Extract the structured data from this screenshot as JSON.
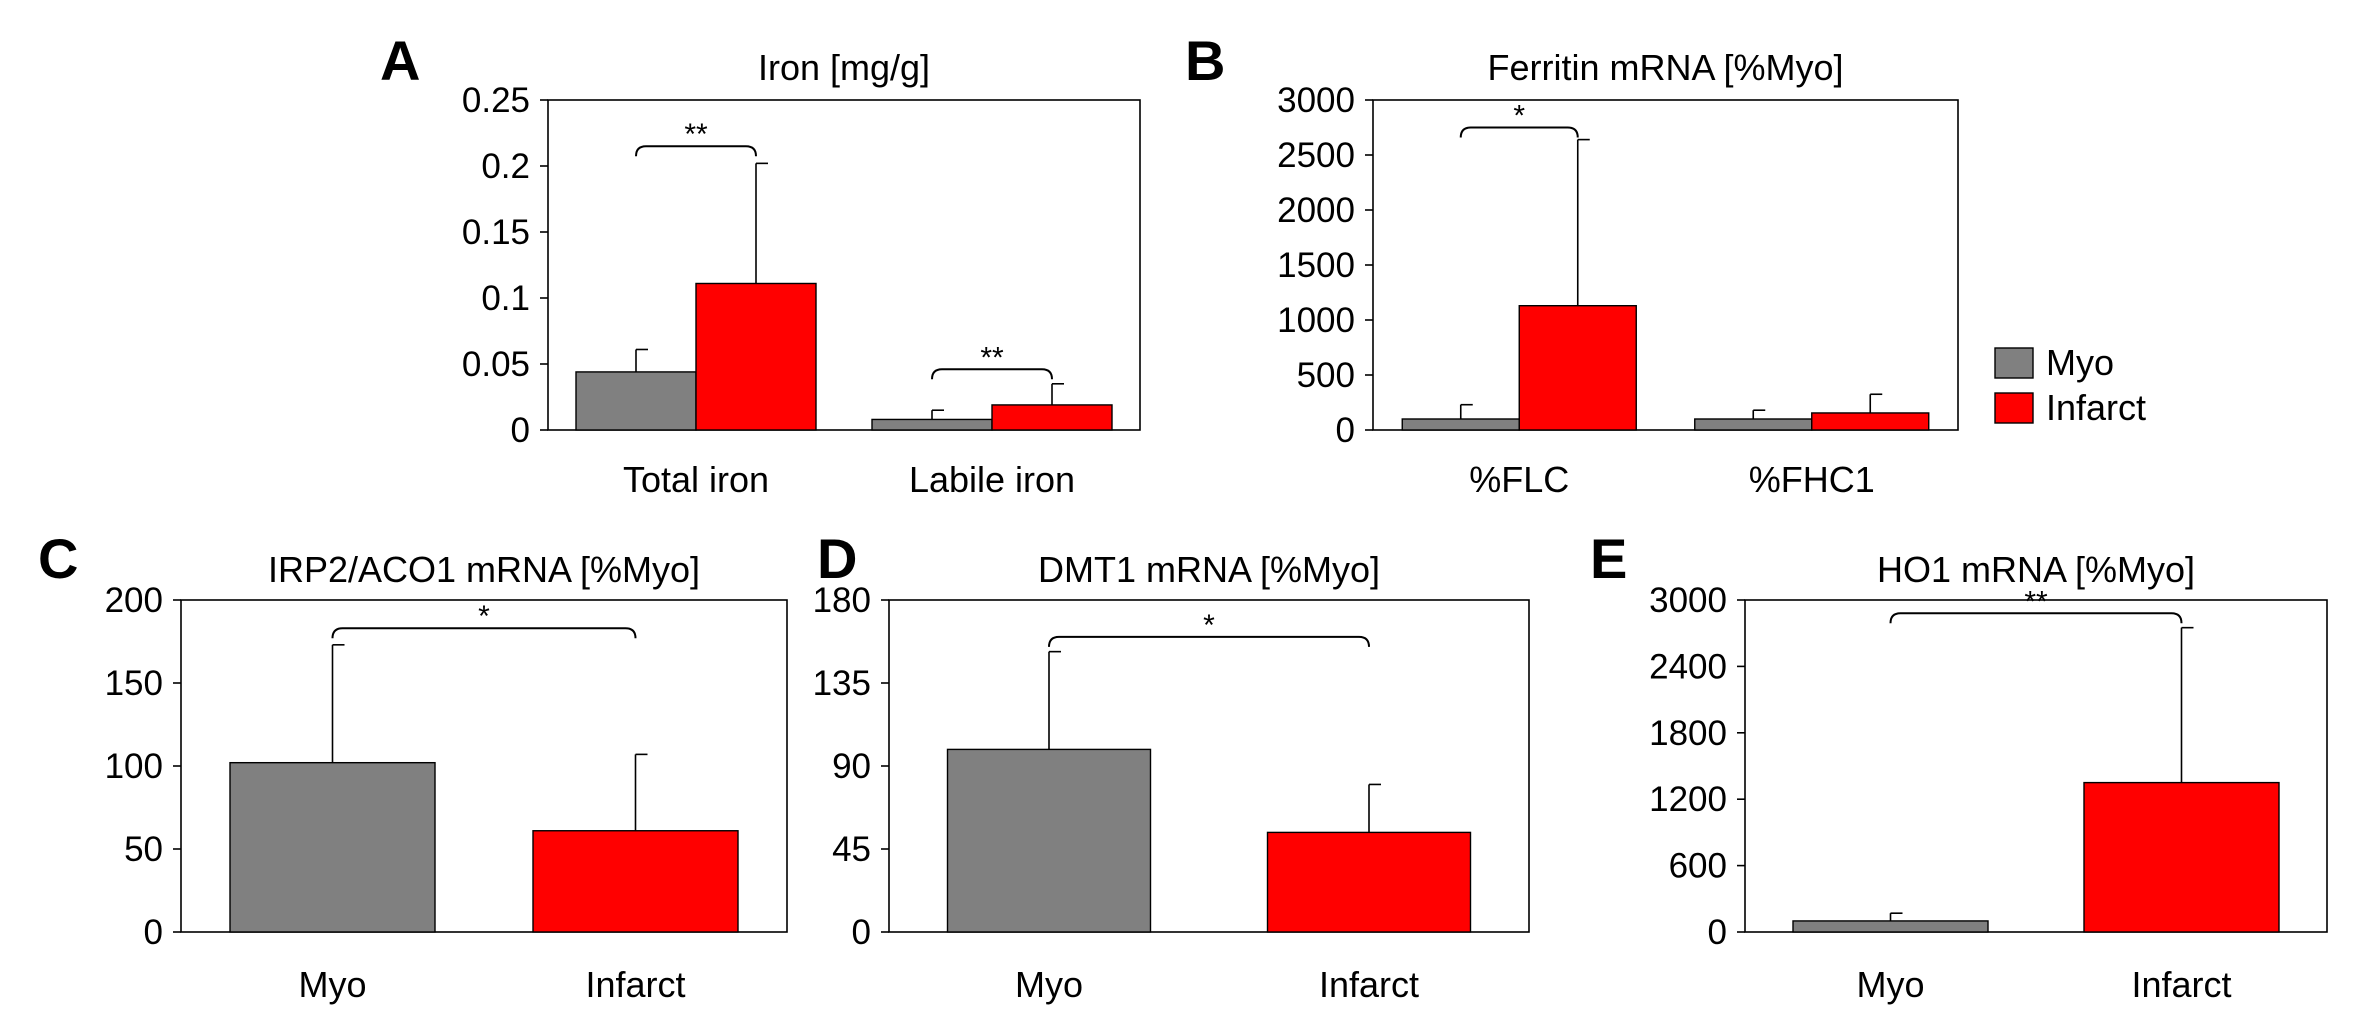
{
  "colors": {
    "myo": "#808080",
    "infarct": "#ff0000",
    "axis": "#000000"
  },
  "legend": [
    {
      "name": "Myo",
      "color": "#808080"
    },
    {
      "name": "Infarct",
      "color": "#ff0000"
    }
  ],
  "chart_data": [
    {
      "id": "A",
      "letter": "A",
      "type": "bar",
      "title": "Iron [mg/g]",
      "categories": [
        "Total iron",
        "Labile iron"
      ],
      "series": [
        {
          "name": "Myo",
          "values": [
            0.044,
            0.008
          ],
          "errors": [
            0.017,
            0.007
          ]
        },
        {
          "name": "Infarct",
          "values": [
            0.111,
            0.019
          ],
          "errors": [
            0.091,
            0.016
          ]
        }
      ],
      "ylim": [
        0,
        0.25
      ],
      "yticks": [
        0,
        0.05,
        0.1,
        0.15,
        0.2,
        0.25
      ],
      "ytick_labels": [
        "0",
        "0.05",
        "0.1",
        "0.15",
        "0.2",
        "0.25"
      ],
      "significance": [
        {
          "category": 0,
          "label": "**",
          "y": 0.215
        },
        {
          "category": 1,
          "label": "**",
          "y": 0.046
        }
      ]
    },
    {
      "id": "B",
      "letter": "B",
      "type": "bar",
      "title": "Ferritin mRNA [%Myo]",
      "categories": [
        "%FLC",
        "%FHC1"
      ],
      "series": [
        {
          "name": "Myo",
          "values": [
            100,
            100
          ],
          "errors": [
            130,
            80
          ]
        },
        {
          "name": "Infarct",
          "values": [
            1130,
            155
          ],
          "errors": [
            1510,
            170
          ]
        }
      ],
      "ylim": [
        0,
        3000
      ],
      "yticks": [
        0,
        500,
        1000,
        1500,
        2000,
        2500,
        3000
      ],
      "ytick_labels": [
        "0",
        "500",
        "1000",
        "1500",
        "2000",
        "2500",
        "3000"
      ],
      "significance": [
        {
          "category": 0,
          "label": "*",
          "y": 2750
        }
      ]
    },
    {
      "id": "C",
      "letter": "C",
      "type": "bar",
      "title": "IRP2/ACO1 mRNA [%Myo]",
      "categories": [
        "Myo",
        "Infarct"
      ],
      "values": [
        102,
        61
      ],
      "errors": [
        71,
        46
      ],
      "colors": [
        "#808080",
        "#ff0000"
      ],
      "ylim": [
        0,
        200
      ],
      "yticks": [
        0,
        50,
        100,
        150,
        200
      ],
      "ytick_labels": [
        "0",
        "50",
        "100",
        "150",
        "200"
      ],
      "significance": [
        {
          "label": "*",
          "y": 183
        }
      ]
    },
    {
      "id": "D",
      "letter": "D",
      "type": "bar",
      "title": "DMT1 mRNA [%Myo]",
      "categories": [
        "Myo",
        "Infarct"
      ],
      "values": [
        99,
        54
      ],
      "errors": [
        53,
        26
      ],
      "colors": [
        "#808080",
        "#ff0000"
      ],
      "ylim": [
        0,
        180
      ],
      "yticks": [
        0,
        45,
        90,
        135,
        180
      ],
      "ytick_labels": [
        "0",
        "45",
        "90",
        "135",
        "180"
      ],
      "significance": [
        {
          "label": "*",
          "y": 160
        }
      ]
    },
    {
      "id": "E",
      "letter": "E",
      "type": "bar",
      "title": "HO1 mRNA [%Myo]",
      "categories": [
        "Myo",
        "Infarct"
      ],
      "values": [
        100,
        1350
      ],
      "errors": [
        70,
        1400
      ],
      "colors": [
        "#808080",
        "#ff0000"
      ],
      "ylim": [
        0,
        3000
      ],
      "yticks": [
        0,
        600,
        1200,
        1800,
        2400,
        3000
      ],
      "ytick_labels": [
        "0",
        "600",
        "1200",
        "1800",
        "2400",
        "3000"
      ],
      "significance": [
        {
          "label": "**",
          "y": 2880
        }
      ]
    }
  ]
}
